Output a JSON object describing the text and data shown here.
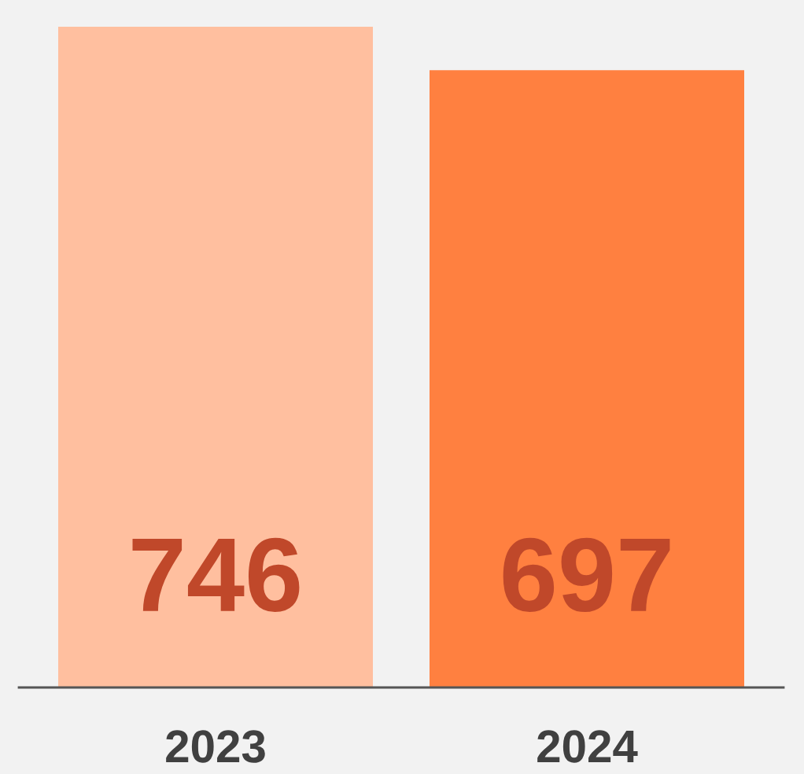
{
  "chart_data": {
    "type": "bar",
    "categories": [
      "2023",
      "2024"
    ],
    "values": [
      746,
      697
    ],
    "colors": [
      "#ffbf9f",
      "#ff8040"
    ],
    "data_labels": true
  }
}
